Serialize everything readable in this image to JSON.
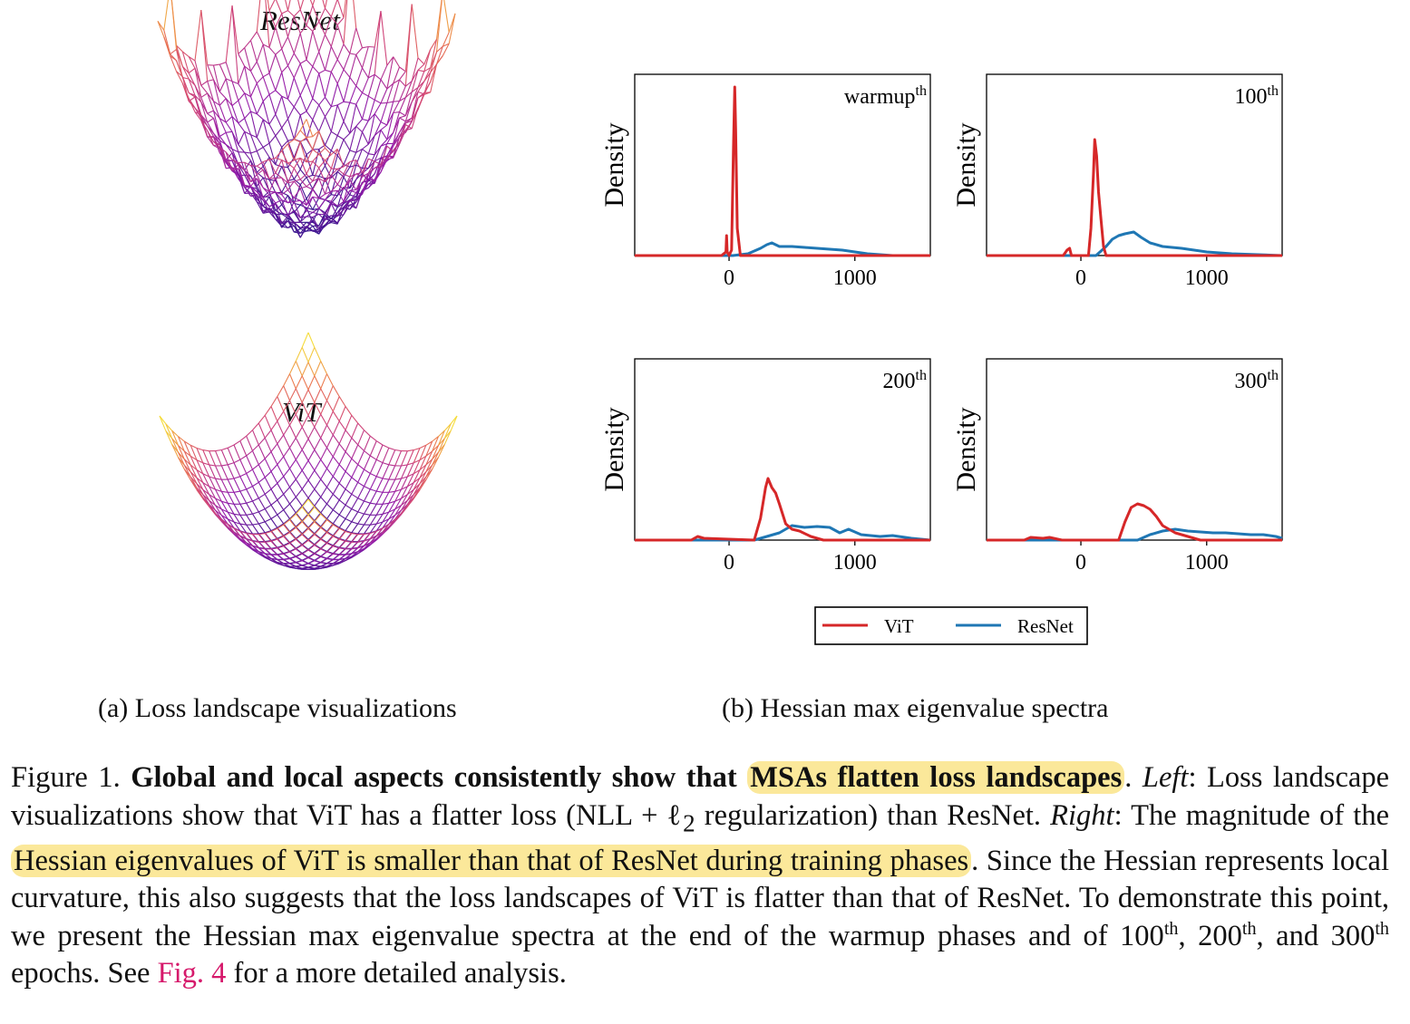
{
  "figure": {
    "left": {
      "top_title": "ResNet",
      "bottom_title": "ViT",
      "subcaption": "(a) Loss landscape visualizations"
    },
    "right": {
      "subcaption": "(b) Hessian max eigenvalue spectra"
    }
  },
  "caption": {
    "prefix": "Figure 1. ",
    "bold_lead": "Global and local aspects consistently show that ",
    "bold_highlight": "MSAs flatten loss landscapes",
    "after_bold": ". ",
    "left_label": "Left",
    "left_text": ": Loss landscape visualizations show that ViT has a flatter loss (NLL + ℓ",
    "left_sub": "2",
    "left_text2": " regularization) than ResNet. ",
    "right_label": "Right",
    "right_text": ": The magnitude of the ",
    "right_highlight": "Hessian eigenvalues of ViT is smaller than that of ResNet during training phases",
    "right_text2": ". Since the Hessian represents local curvature, this also suggests that the loss landscapes of ViT is flatter than that of ResNet. To demonstrate this point, we present the Hessian max eigenvalue spectra at the end of the warmup phases and of 100",
    "sup_th": "th",
    "seg_200": ", 200",
    "seg_and": ", and 300",
    "seg_epochs": " epochs. See ",
    "fig_ref": "Fig. 4",
    "seg_end": " for a more detailed analysis."
  },
  "chart_data": {
    "type": "line",
    "legend": [
      "ViT",
      "ResNet"
    ],
    "colors": {
      "ViT": "#d62728",
      "ResNet": "#1f77b4"
    },
    "ylabel": "Density",
    "xticks": [
      0,
      1000
    ],
    "xlim": [
      -750,
      1600
    ],
    "ylim": [
      0,
      1.0
    ],
    "legend_position": "bottom-center",
    "panels": [
      {
        "label": "warmup",
        "label_sup": "th",
        "vit": [
          [
            -750,
            0
          ],
          [
            -60,
            0
          ],
          [
            -25,
            0.02
          ],
          [
            -20,
            0.11
          ],
          [
            -15,
            0.02
          ],
          [
            0,
            0
          ],
          [
            20,
            0.03
          ],
          [
            35,
            0.6
          ],
          [
            45,
            0.93
          ],
          [
            52,
            0.7
          ],
          [
            65,
            0.15
          ],
          [
            90,
            0
          ],
          [
            1600,
            0
          ]
        ],
        "resnet": [
          [
            -750,
            0
          ],
          [
            30,
            0
          ],
          [
            150,
            0.01
          ],
          [
            250,
            0.04
          ],
          [
            300,
            0.06
          ],
          [
            340,
            0.07
          ],
          [
            400,
            0.05
          ],
          [
            500,
            0.05
          ],
          [
            600,
            0.045
          ],
          [
            700,
            0.04
          ],
          [
            800,
            0.035
          ],
          [
            900,
            0.03
          ],
          [
            1000,
            0.02
          ],
          [
            1100,
            0.01
          ],
          [
            1200,
            0.005
          ],
          [
            1300,
            0
          ],
          [
            1600,
            0
          ]
        ]
      },
      {
        "label": "100",
        "label_sup": "th",
        "vit": [
          [
            -750,
            0
          ],
          [
            -140,
            0
          ],
          [
            -110,
            0.03
          ],
          [
            -90,
            0.04
          ],
          [
            -75,
            0
          ],
          [
            60,
            0
          ],
          [
            80,
            0.15
          ],
          [
            100,
            0.45
          ],
          [
            110,
            0.64
          ],
          [
            125,
            0.55
          ],
          [
            140,
            0.35
          ],
          [
            160,
            0.2
          ],
          [
            180,
            0.05
          ],
          [
            200,
            0
          ],
          [
            1600,
            0
          ]
        ],
        "resnet": [
          [
            -750,
            0
          ],
          [
            120,
            0
          ],
          [
            200,
            0.05
          ],
          [
            250,
            0.09
          ],
          [
            300,
            0.11
          ],
          [
            350,
            0.12
          ],
          [
            420,
            0.13
          ],
          [
            480,
            0.1
          ],
          [
            550,
            0.07
          ],
          [
            650,
            0.05
          ],
          [
            800,
            0.04
          ],
          [
            900,
            0.03
          ],
          [
            1000,
            0.02
          ],
          [
            1200,
            0.01
          ],
          [
            1600,
            0
          ]
        ]
      },
      {
        "label": "200",
        "label_sup": "th",
        "vit": [
          [
            -750,
            0
          ],
          [
            -300,
            0
          ],
          [
            -250,
            0.02
          ],
          [
            -200,
            0.01
          ],
          [
            200,
            0
          ],
          [
            250,
            0.12
          ],
          [
            290,
            0.29
          ],
          [
            310,
            0.34
          ],
          [
            340,
            0.29
          ],
          [
            370,
            0.26
          ],
          [
            400,
            0.2
          ],
          [
            450,
            0.09
          ],
          [
            500,
            0.06
          ],
          [
            560,
            0.05
          ],
          [
            650,
            0.02
          ],
          [
            750,
            0
          ],
          [
            1600,
            0
          ]
        ],
        "resnet": [
          [
            -750,
            0
          ],
          [
            200,
            0
          ],
          [
            300,
            0.02
          ],
          [
            400,
            0.04
          ],
          [
            500,
            0.08
          ],
          [
            600,
            0.07
          ],
          [
            700,
            0.075
          ],
          [
            800,
            0.07
          ],
          [
            880,
            0.04
          ],
          [
            950,
            0.06
          ],
          [
            1050,
            0.03
          ],
          [
            1200,
            0.02
          ],
          [
            1300,
            0.025
          ],
          [
            1450,
            0.01
          ],
          [
            1600,
            0
          ]
        ]
      },
      {
        "label": "300",
        "label_sup": "th",
        "vit": [
          [
            -750,
            0
          ],
          [
            -450,
            0
          ],
          [
            -400,
            0.015
          ],
          [
            -300,
            0.01
          ],
          [
            -250,
            0.015
          ],
          [
            -150,
            0
          ],
          [
            300,
            0
          ],
          [
            350,
            0.1
          ],
          [
            400,
            0.18
          ],
          [
            450,
            0.2
          ],
          [
            500,
            0.19
          ],
          [
            550,
            0.17
          ],
          [
            600,
            0.13
          ],
          [
            650,
            0.08
          ],
          [
            750,
            0.04
          ],
          [
            850,
            0.02
          ],
          [
            950,
            0
          ],
          [
            1600,
            0
          ]
        ],
        "resnet": [
          [
            -750,
            0
          ],
          [
            450,
            0
          ],
          [
            550,
            0.03
          ],
          [
            650,
            0.05
          ],
          [
            750,
            0.06
          ],
          [
            850,
            0.05
          ],
          [
            950,
            0.045
          ],
          [
            1050,
            0.04
          ],
          [
            1150,
            0.04
          ],
          [
            1250,
            0.035
          ],
          [
            1350,
            0.03
          ],
          [
            1450,
            0.03
          ],
          [
            1550,
            0.02
          ],
          [
            1600,
            0.01
          ]
        ]
      }
    ]
  }
}
